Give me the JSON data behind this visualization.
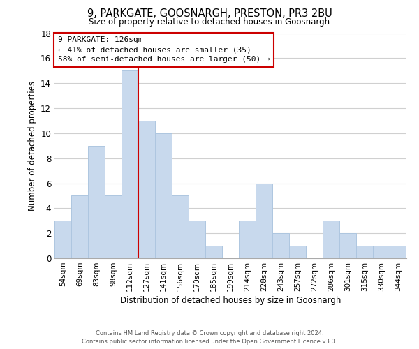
{
  "title": "9, PARKGATE, GOOSNARGH, PRESTON, PR3 2BU",
  "subtitle": "Size of property relative to detached houses in Goosnargh",
  "xlabel": "Distribution of detached houses by size in Goosnargh",
  "ylabel": "Number of detached properties",
  "footnote1": "Contains HM Land Registry data © Crown copyright and database right 2024.",
  "footnote2": "Contains public sector information licensed under the Open Government Licence v3.0.",
  "bin_labels": [
    "54sqm",
    "69sqm",
    "83sqm",
    "98sqm",
    "112sqm",
    "127sqm",
    "141sqm",
    "156sqm",
    "170sqm",
    "185sqm",
    "199sqm",
    "214sqm",
    "228sqm",
    "243sqm",
    "257sqm",
    "272sqm",
    "286sqm",
    "301sqm",
    "315sqm",
    "330sqm",
    "344sqm"
  ],
  "bar_heights": [
    3,
    5,
    9,
    5,
    15,
    11,
    10,
    5,
    3,
    1,
    0,
    3,
    6,
    2,
    1,
    0,
    3,
    2,
    1,
    1,
    1
  ],
  "bar_color": "#c8d9ed",
  "bar_edge_color": "#aec6e0",
  "grid_color": "#d0d0d0",
  "vline_x_index": 5,
  "vline_color": "#cc0000",
  "annotation_title": "9 PARKGATE: 126sqm",
  "annotation_line1": "← 41% of detached houses are smaller (35)",
  "annotation_line2": "58% of semi-detached houses are larger (50) →",
  "annotation_box_color": "#ffffff",
  "annotation_box_edge": "#cc0000",
  "ylim": [
    0,
    18
  ],
  "yticks": [
    0,
    2,
    4,
    6,
    8,
    10,
    12,
    14,
    16,
    18
  ]
}
